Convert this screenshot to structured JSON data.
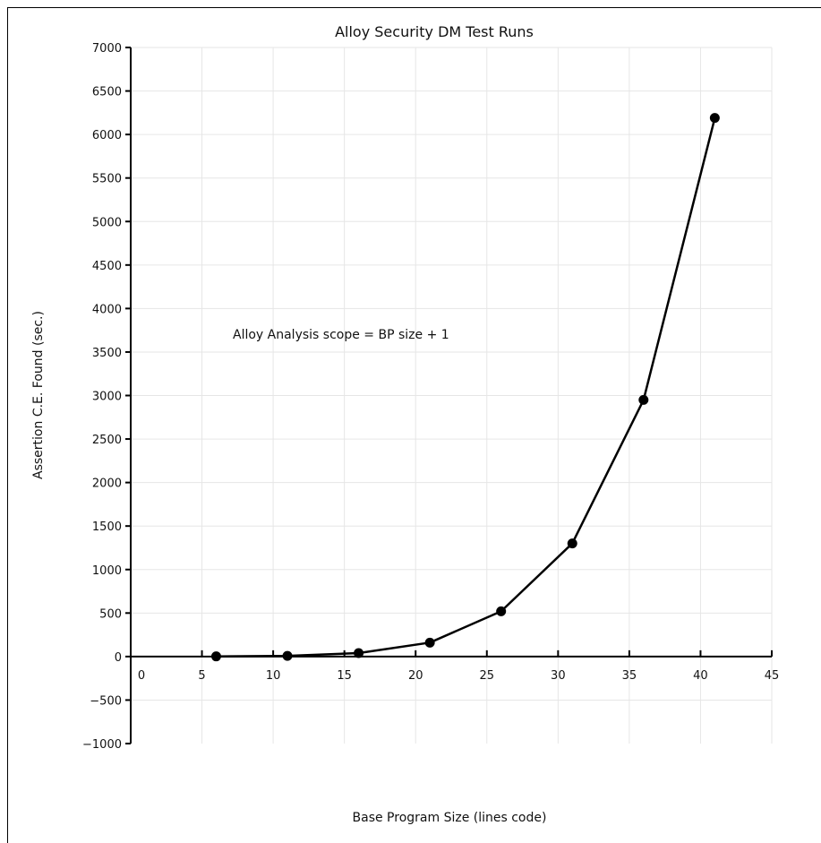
{
  "chart_data": {
    "type": "line",
    "title": "Alloy Security DM Test Runs",
    "xlabel": "Base Program Size (lines code)",
    "ylabel": "Assertion C.E. Found (sec.)",
    "annotation": "Alloy Analysis scope = BP size + 1",
    "xlim": [
      0,
      45
    ],
    "ylim": [
      -1000,
      7000
    ],
    "x_ticks": [
      0,
      5,
      10,
      15,
      20,
      25,
      30,
      35,
      40,
      45
    ],
    "y_ticks": [
      -1000,
      -500,
      0,
      500,
      1000,
      1500,
      2000,
      2500,
      3000,
      3500,
      4000,
      4500,
      5000,
      5500,
      6000,
      6500,
      7000
    ],
    "x_tick_labels": [
      "0",
      "5",
      "10",
      "15",
      "20",
      "25",
      "30",
      "35",
      "40",
      "45"
    ],
    "y_tick_labels": [
      "−1000",
      "−500",
      "0",
      "500",
      "1000",
      "1500",
      "2000",
      "2500",
      "3000",
      "3500",
      "4000",
      "4500",
      "5000",
      "5500",
      "6000",
      "6500",
      "7000"
    ],
    "grid": true,
    "legend": "none",
    "series": [
      {
        "x": [
          6,
          11,
          16,
          21,
          26,
          31,
          36,
          41
        ],
        "y": [
          2,
          8,
          40,
          160,
          520,
          1300,
          2950,
          6190
        ]
      }
    ]
  }
}
